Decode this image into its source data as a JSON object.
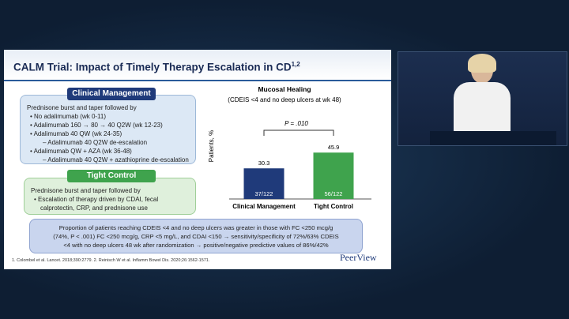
{
  "slide": {
    "title": "CALM Trial: Impact of Timely Therapy Escalation in CD",
    "title_superscript": "1,2",
    "clinical": {
      "header": "Clinical Management",
      "lines": [
        "Prednisone burst and taper followed by",
        "• No adalimumab (wk 0-11)",
        "• Adalimumab 160 → 80 → 40 Q2W (wk 12-23)",
        "• Adalimumab 40 QW (wk 24-35)",
        "– Adalimumab 40 Q2W de-escalation",
        "• Adalimumab QW + AZA (wk 36-48)",
        "– Adalimumab 40 Q2W + azathioprine de-escalation"
      ]
    },
    "tight": {
      "header": "Tight Control",
      "lines": [
        "Prednisone burst and taper followed by",
        "• Escalation of therapy driven by CDAI, fecal",
        "calprotectin, CRP, and prednisone use"
      ]
    },
    "summary": [
      "Proportion of patients reaching CDEIS <4 and no deep ulcers was greater in those with FC <250 mcg/g",
      "(74%, P < .001) FC <250 mcg/g, CRP <5 mg/L, and CDAI <150 → sensitivity/specificity of 72%/63% CDEIS",
      "<4 with no deep ulcers 48 wk after randomization → positive/negative predictive values of 86%/42%"
    ],
    "footnote": "1. Colombel et al. Lancet. 2018;390:2779. 2. Reinisch W et al. Inflamm Bowel Dis. 2020;26:1562-1571.",
    "logo": "PeerView"
  },
  "chart_data": {
    "type": "bar",
    "title": "Mucosal Healing",
    "subtitle": "(CDEIS <4 and no deep ulcers at wk 48)",
    "y_label": "Patients, %",
    "categories": [
      "Clinical Management",
      "Tight Control"
    ],
    "values": [
      30.3,
      45.9
    ],
    "colors": [
      "#1f3a7a",
      "#3fa34d"
    ],
    "counts": [
      "37/122",
      "56/122"
    ],
    "annotation": "P = .010",
    "ylim": [
      0,
      100
    ]
  }
}
